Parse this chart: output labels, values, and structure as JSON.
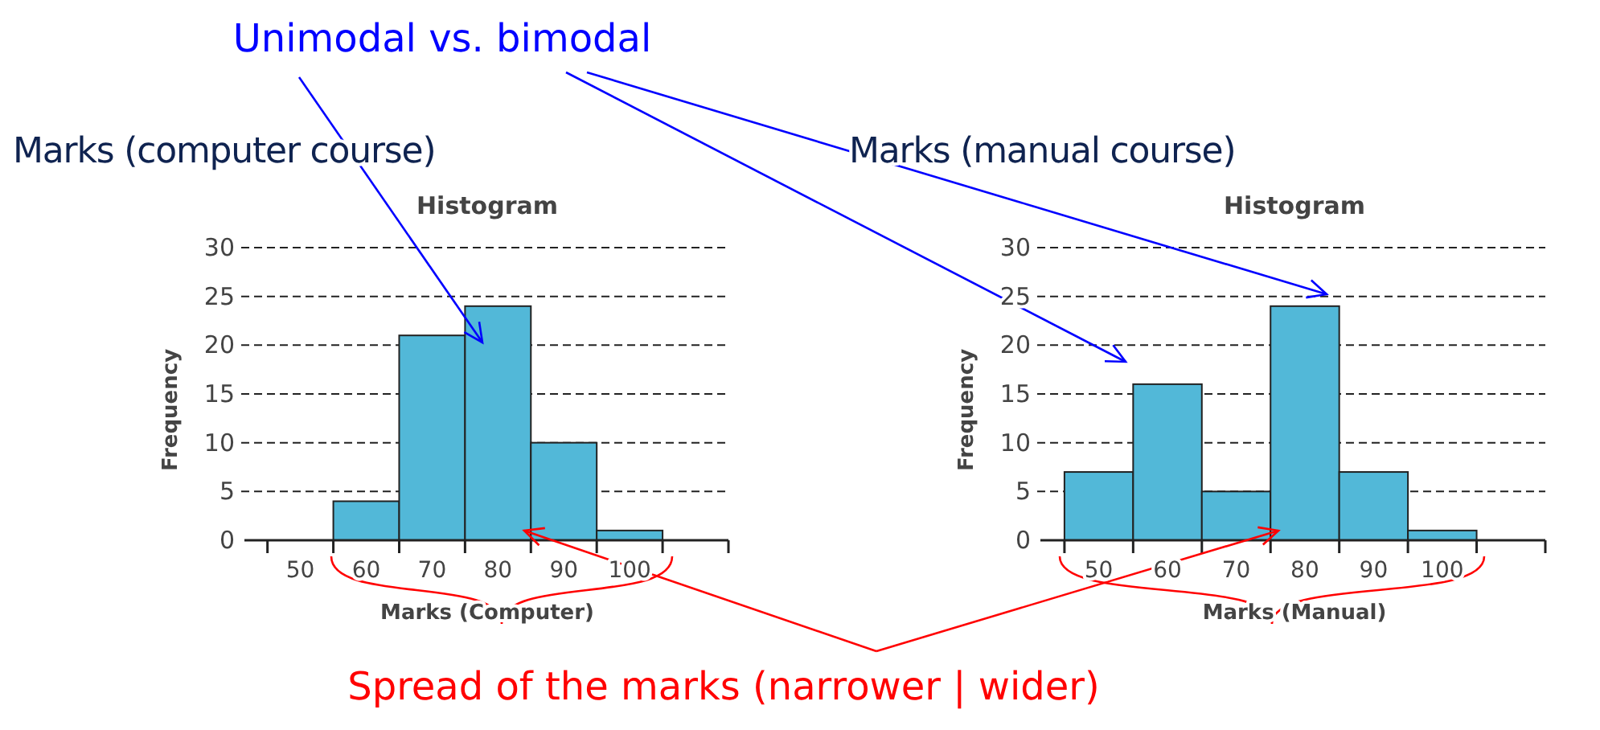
{
  "chart_data": [
    {
      "type": "histogram",
      "title": "Marks (computer course)",
      "subtitle": "Histogram",
      "xlabel": "Marks (Computer)",
      "ylabel": "Frequency",
      "bins": [
        45,
        55,
        65,
        75,
        85,
        95,
        105
      ],
      "values": [
        0,
        4,
        21,
        24,
        10,
        1
      ],
      "color": "#52b8d8",
      "xlim": [
        41.5,
        115
      ],
      "xticks": [
        {
          "value": 45,
          "label": null
        },
        50,
        {
          "value": 55,
          "label": null
        },
        60,
        {
          "value": 65,
          "label": null
        },
        70,
        {
          "value": 75,
          "label": null
        },
        80,
        {
          "value": 85,
          "label": null
        },
        90,
        {
          "value": 95,
          "label": null
        },
        100,
        {
          "value": 105,
          "label": null
        },
        {
          "value": 115,
          "label": null
        }
      ],
      "ylim": [
        0,
        30
      ],
      "yticks": [
        0,
        5,
        10,
        15,
        20,
        25,
        30
      ],
      "grid": "y",
      "annotations": [
        "Unimodal vs. bimodal",
        "Spread of the marks (narrower | wider)"
      ]
    },
    {
      "type": "histogram",
      "title": "Marks (manual course)",
      "subtitle": "Histogram",
      "xlabel": "Marks (Manual)",
      "ylabel": "Frequency",
      "bins": [
        45,
        55,
        65,
        75,
        85,
        95,
        105
      ],
      "values": [
        7,
        16,
        5,
        24,
        7,
        1
      ],
      "color": "#52b8d8",
      "xlim": [
        41.5,
        115
      ],
      "xticks": [
        {
          "value": 45,
          "label": null
        },
        50,
        {
          "value": 55,
          "label": null
        },
        60,
        {
          "value": 65,
          "label": null
        },
        70,
        {
          "value": 75,
          "label": null
        },
        80,
        {
          "value": 85,
          "label": null
        },
        90,
        {
          "value": 95,
          "label": null
        },
        100,
        {
          "value": 105,
          "label": null
        },
        {
          "value": 115,
          "label": null
        }
      ],
      "ylim": [
        0,
        30
      ],
      "yticks": [
        0,
        5,
        10,
        15,
        20,
        25,
        30
      ],
      "grid": "y"
    }
  ]
}
